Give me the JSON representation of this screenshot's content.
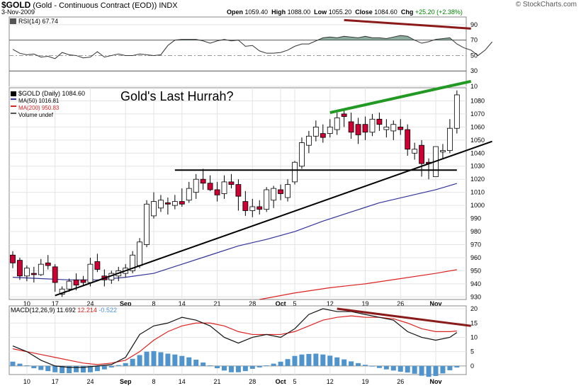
{
  "header": {
    "symbol": "$GOLD",
    "name": "(Gold - Continuous Contract (EOD))",
    "exchange": "INDX",
    "date": "3-Nov-2009",
    "open_label": "Open",
    "open": "1059.40",
    "high_label": "High",
    "high": "1088.00",
    "low_label": "Low",
    "low": "1055.20",
    "close_label": "Close",
    "close": "1084.60",
    "chg_label": "Chg",
    "chg": "+25.20 (+2.38%)",
    "brand": "© StockCharts.com"
  },
  "annotation": "Gold's Last Hurrah?",
  "colors": {
    "up_candle": "#ffffff",
    "down_candle": "#cc0033",
    "ma50": "#333399",
    "ma200": "#dd2222",
    "rsi": "#333333",
    "macd": "#111111",
    "signal": "#dd2222",
    "hist": "#4f94cd",
    "trend_up": "#229922",
    "trend_down": "#8b1a1a",
    "support": "#000000"
  },
  "chart_data": [
    {
      "type": "line",
      "panel": "RSI",
      "legend": "RSI(14) 67.74",
      "ylim": [
        10,
        100
      ],
      "yticks": [
        10,
        30,
        50,
        70,
        90
      ],
      "reference_lines": [
        30,
        50,
        70
      ],
      "x": [
        0,
        1,
        2,
        3,
        4,
        5,
        6,
        7,
        8,
        9,
        10,
        11,
        12,
        13,
        14,
        15,
        16,
        17,
        18,
        19,
        20,
        21,
        22,
        23,
        24,
        25,
        26,
        27,
        28,
        29,
        30,
        31,
        32,
        33,
        34,
        35,
        36,
        37,
        38,
        39,
        40,
        41,
        42,
        43,
        44,
        45,
        46,
        47,
        48,
        49,
        50,
        51,
        52,
        53,
        54,
        55,
        56,
        57,
        58,
        59,
        60,
        61,
        62,
        63,
        64,
        65,
        66,
        67,
        68
      ],
      "values": [
        58,
        53,
        51,
        52,
        48,
        49,
        46,
        54,
        51,
        50,
        47,
        48,
        55,
        48,
        50,
        52,
        50,
        50,
        52,
        51,
        50,
        51,
        63,
        70,
        71,
        71,
        71,
        69,
        66,
        69,
        71,
        69,
        70,
        62,
        63,
        56,
        53,
        53,
        54,
        57,
        62,
        65,
        65,
        69,
        73,
        74,
        73,
        75,
        74,
        73,
        75,
        73,
        73,
        72,
        74,
        76,
        75,
        70,
        66,
        68,
        71,
        72,
        73,
        65,
        60,
        57,
        50,
        57,
        67.74
      ],
      "trendline": {
        "color": "trend_down",
        "from": [
          47,
          96
        ],
        "to": [
          65,
          85
        ]
      }
    },
    {
      "type": "candlestick",
      "panel": "price",
      "legend": [
        "$GOLD (Daily) 1084.60",
        "MA(50) 1016.81",
        "MA(200) 950.83",
        "Volume undef"
      ],
      "ylim": [
        928,
        1090
      ],
      "yticks": [
        930,
        940,
        950,
        960,
        970,
        980,
        990,
        1000,
        1010,
        1020,
        1030,
        1040,
        1050,
        1060,
        1070,
        1080
      ],
      "x_ticks": [
        {
          "label": "10",
          "x": 2
        },
        {
          "label": "17",
          "x": 6
        },
        {
          "label": "24",
          "x": 11
        },
        {
          "label": "Sep",
          "x": 16
        },
        {
          "label": "8",
          "x": 20
        },
        {
          "label": "14",
          "x": 24
        },
        {
          "label": "21",
          "x": 29
        },
        {
          "label": "28",
          "x": 34
        },
        {
          "label": "Oct",
          "x": 38
        },
        {
          "label": "5",
          "x": 40
        },
        {
          "label": "12",
          "x": 45
        },
        {
          "label": "19",
          "x": 50
        },
        {
          "label": "26",
          "x": 55
        },
        {
          "label": "Nov",
          "x": 60
        }
      ],
      "ohlc": [
        [
          962,
          965,
          952,
          956
        ],
        [
          958,
          960,
          943,
          946
        ],
        [
          946,
          954,
          942,
          952
        ],
        [
          948,
          953,
          941,
          947
        ],
        [
          947,
          959,
          946,
          955
        ],
        [
          956,
          962,
          951,
          954
        ],
        [
          953,
          955,
          934,
          941
        ],
        [
          932,
          938,
          930,
          936
        ],
        [
          936,
          944,
          934,
          942
        ],
        [
          943,
          948,
          935,
          939
        ],
        [
          943,
          946,
          938,
          941
        ],
        [
          941,
          960,
          938,
          955
        ],
        [
          957,
          963,
          949,
          951
        ],
        [
          946,
          951,
          938,
          943
        ],
        [
          943,
          950,
          940,
          948
        ],
        [
          946,
          953,
          942,
          950
        ],
        [
          948,
          955,
          945,
          952
        ],
        [
          950,
          965,
          948,
          962
        ],
        [
          954,
          975,
          952,
          972
        ],
        [
          970,
          1004,
          968,
          1001
        ],
        [
          992,
          1010,
          990,
          1003
        ],
        [
          998,
          1008,
          995,
          1004
        ],
        [
          1002,
          1006,
          993,
          1001
        ],
        [
          1000,
          1008,
          997,
          1003
        ],
        [
          1003,
          1013,
          999,
          1001
        ],
        [
          1004,
          1018,
          1002,
          1013
        ],
        [
          1010,
          1024,
          1005,
          1020
        ],
        [
          1020,
          1028,
          1012,
          1017
        ],
        [
          1017,
          1023,
          1011,
          1012
        ],
        [
          1012,
          1018,
          1003,
          1008
        ],
        [
          1009,
          1023,
          1005,
          1018
        ],
        [
          1018,
          1024,
          1013,
          1016
        ],
        [
          1016,
          1020,
          996,
          1007
        ],
        [
          1003,
          1011,
          992,
          996
        ],
        [
          996,
          1005,
          991,
          999
        ],
        [
          999,
          1004,
          993,
          997
        ],
        [
          997,
          1014,
          995,
          1012
        ],
        [
          1004,
          1015,
          998,
          1013
        ],
        [
          1012,
          1016,
          1004,
          1009
        ],
        [
          1006,
          1020,
          1003,
          1016
        ],
        [
          1018,
          1034,
          1016,
          1033
        ],
        [
          1030,
          1052,
          1028,
          1048
        ],
        [
          1046,
          1057,
          1040,
          1053
        ],
        [
          1053,
          1065,
          1049,
          1060
        ],
        [
          1055,
          1062,
          1048,
          1052
        ],
        [
          1055,
          1066,
          1052,
          1060
        ],
        [
          1058,
          1071,
          1054,
          1067
        ],
        [
          1070,
          1073,
          1060,
          1068
        ],
        [
          1064,
          1071,
          1051,
          1056
        ],
        [
          1062,
          1067,
          1047,
          1054
        ],
        [
          1062,
          1068,
          1050,
          1056
        ],
        [
          1056,
          1070,
          1053,
          1066
        ],
        [
          1066,
          1071,
          1057,
          1062
        ],
        [
          1058,
          1066,
          1052,
          1060
        ],
        [
          1057,
          1065,
          1050,
          1062
        ],
        [
          1060,
          1066,
          1054,
          1058
        ],
        [
          1058,
          1062,
          1038,
          1043
        ],
        [
          1040,
          1048,
          1035,
          1043
        ],
        [
          1046,
          1050,
          1022,
          1032
        ],
        [
          1033,
          1036,
          1020,
          1032
        ],
        [
          1022,
          1044,
          1022,
          1045
        ],
        [
          1041,
          1047,
          1036,
          1042
        ],
        [
          1042,
          1066,
          1040,
          1059
        ],
        [
          1059,
          1088,
          1055,
          1084.6
        ]
      ],
      "ma50": {
        "x": [
          0,
          4,
          8,
          12,
          16,
          20,
          24,
          28,
          32,
          36,
          40,
          44,
          48,
          52,
          56,
          60,
          63
        ],
        "values": [
          945,
          944,
          943,
          943,
          945,
          948,
          955,
          962,
          969,
          974,
          980,
          988,
          995,
          1002,
          1007,
          1012,
          1016.81
        ]
      },
      "ma200": {
        "x": [
          35,
          40,
          45,
          50,
          55,
          60,
          63
        ],
        "values": [
          928,
          933,
          937,
          940,
          944,
          948,
          950.83
        ]
      },
      "support_line": {
        "from": [
          23,
          1027
        ],
        "to": [
          63,
          1027
        ]
      },
      "trendline_up_support": {
        "from": [
          6,
          931
        ],
        "to": [
          68,
          1049
        ]
      },
      "trendline_up_green": {
        "color": "trend_up",
        "from": [
          45,
          1071
        ],
        "to": [
          65,
          1095
        ]
      }
    },
    {
      "type": "line",
      "panel": "MACD",
      "legend": [
        "MACD(12,26,9)",
        "11.692",
        "12.214",
        "-0.522"
      ],
      "ylim": [
        -3,
        21
      ],
      "yticks": [
        0,
        5,
        10,
        15,
        20
      ],
      "x": [
        0,
        2,
        4,
        6,
        8,
        10,
        12,
        14,
        16,
        18,
        20,
        22,
        24,
        26,
        28,
        30,
        32,
        34,
        36,
        38,
        40,
        42,
        44,
        46,
        48,
        50,
        52,
        54,
        56,
        58,
        60,
        62,
        63
      ],
      "macd": [
        7,
        5,
        2,
        0,
        -0.5,
        -0.5,
        0,
        0.5,
        3,
        11,
        14,
        15,
        17,
        16,
        14,
        10,
        8,
        10,
        11,
        10,
        13,
        18,
        20,
        19,
        19,
        18,
        17,
        16,
        12,
        10,
        9,
        10,
        11.692
      ],
      "signal": [
        6,
        5,
        4,
        3,
        2,
        1,
        0.5,
        1,
        2,
        5,
        9,
        12,
        14,
        15,
        15,
        14,
        12,
        11,
        11,
        11,
        12,
        14,
        16,
        17,
        17.5,
        17,
        17,
        16.5,
        15,
        13,
        12,
        12,
        12.214
      ],
      "hist_x": [
        0,
        1,
        2,
        3,
        4,
        5,
        6,
        7,
        8,
        9,
        10,
        11,
        12,
        13,
        14,
        15,
        16,
        17,
        18,
        19,
        20,
        21,
        22,
        23,
        24,
        25,
        26,
        27,
        28,
        29,
        30,
        31,
        32,
        33,
        34,
        35,
        36,
        37,
        38,
        39,
        40,
        41,
        42,
        43,
        44,
        45,
        46,
        47,
        48,
        49,
        50,
        51,
        52,
        53,
        54,
        55,
        56,
        57,
        58,
        59,
        60,
        61,
        62,
        63
      ],
      "histogram": [
        1.5,
        0.8,
        0.2,
        -0.8,
        -1.4,
        -1.8,
        -2.2,
        -2.5,
        -2.5,
        -2.2,
        -2.3,
        -2.2,
        -1.8,
        -1.2,
        -0.5,
        0.3,
        1,
        2.5,
        3.8,
        5,
        5.2,
        4.8,
        4.3,
        4,
        3.5,
        3,
        2.2,
        1.2,
        0.2,
        -0.8,
        -1.6,
        -2.2,
        -2.2,
        -1.8,
        -1,
        -0.5,
        0.2,
        0.8,
        1.5,
        2.4,
        3.5,
        4,
        4.2,
        4.3,
        4,
        3.6,
        3,
        2.3,
        1.6,
        1,
        0.4,
        -0.2,
        -0.7,
        -1.2,
        -1.6,
        -2,
        -2.3,
        -2.7,
        -3.4,
        -3.8,
        -3.5,
        -2.6,
        -1.5,
        -0.522
      ],
      "x_ticks": [
        {
          "label": "10",
          "x": 2
        },
        {
          "label": "17",
          "x": 6
        },
        {
          "label": "24",
          "x": 11
        },
        {
          "label": "Sep",
          "x": 16
        },
        {
          "label": "8",
          "x": 20
        },
        {
          "label": "14",
          "x": 24
        },
        {
          "label": "21",
          "x": 29
        },
        {
          "label": "28",
          "x": 34
        },
        {
          "label": "Oct",
          "x": 38
        },
        {
          "label": "5",
          "x": 40
        },
        {
          "label": "12",
          "x": 45
        },
        {
          "label": "19",
          "x": 50
        },
        {
          "label": "26",
          "x": 55
        },
        {
          "label": "Nov",
          "x": 60
        }
      ],
      "trendline": {
        "color": "trend_down",
        "from": [
          46,
          20
        ],
        "to": [
          65,
          14
        ]
      }
    }
  ]
}
